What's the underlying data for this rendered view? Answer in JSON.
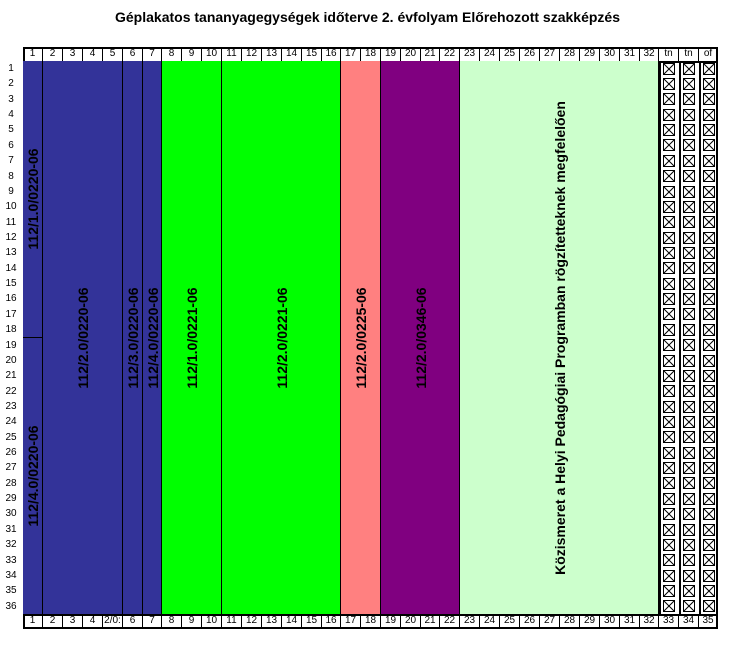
{
  "title": "Géplakatos tananyagegységek időterve 2. évfolyam Előrehozott szakképzés",
  "header_top": [
    "1",
    "2",
    "3",
    "4",
    "5",
    "6",
    "7",
    "8",
    "9",
    "10",
    "11",
    "12",
    "13",
    "14",
    "15",
    "16",
    "17",
    "18",
    "19",
    "20",
    "21",
    "22",
    "23",
    "24",
    "25",
    "26",
    "27",
    "28",
    "29",
    "30",
    "31",
    "32",
    "tn",
    "tn",
    "of"
  ],
  "header_bottom": [
    "1",
    "2",
    "3",
    "4",
    "2/0:",
    "6",
    "7",
    "8",
    "9",
    "10",
    "11",
    "12",
    "13",
    "14",
    "15",
    "16",
    "17",
    "18",
    "19",
    "20",
    "21",
    "22",
    "23",
    "24",
    "25",
    "26",
    "27",
    "28",
    "29",
    "30",
    "31",
    "32",
    "33",
    "34",
    "35"
  ],
  "rows": [
    "1",
    "2",
    "3",
    "4",
    "5",
    "6",
    "7",
    "8",
    "9",
    "10",
    "11",
    "12",
    "13",
    "14",
    "15",
    "16",
    "17",
    "18",
    "19",
    "20",
    "21",
    "22",
    "23",
    "24",
    "25",
    "26",
    "27",
    "28",
    "29",
    "30",
    "31",
    "32",
    "33",
    "34",
    "35",
    "36"
  ],
  "blocks": [
    {
      "label": "112/1.0/0220-06",
      "color": "#333399"
    },
    {
      "label": "112/4.0/0220-06",
      "color": "#333399"
    },
    {
      "label": "112/2.0/0220-06",
      "color": "#333399"
    },
    {
      "label": "112/3.0/0220-06",
      "color": "#333399"
    },
    {
      "label": "112/4.0/0220-06",
      "color": "#333399"
    },
    {
      "label": "112/1.0/0221-06",
      "color": "#00ff00"
    },
    {
      "label": "112/2.0/0221-06",
      "color": "#00ff00"
    },
    {
      "label": "112/2.0/0225-06",
      "color": "#ff8080"
    },
    {
      "label": "112/2.0/0346-06",
      "color": "#800080"
    },
    {
      "label": "Közismeret a Helyi Pedagógiai Programban rögzítetteknek megfelelően",
      "color": "#ccffcc"
    }
  ]
}
